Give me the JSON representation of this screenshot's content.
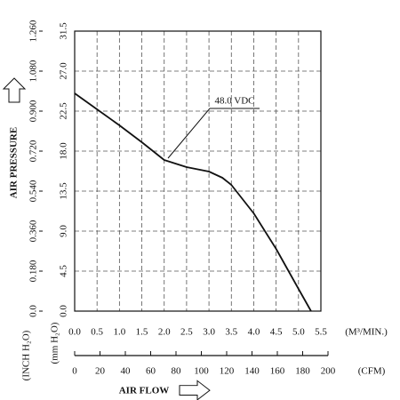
{
  "chart_data": {
    "type": "line",
    "x_label": "AIR FLOW",
    "y_label": "AIR PRESSURE",
    "x_unit": "(M³/MIN.)",
    "x2_unit": "(CFM)",
    "y_unit": "(mm H₂O)",
    "y2_unit": "(INCH H₂O)",
    "annotation": "48.0 VDC",
    "x": [
      0,
      0.5,
      1.0,
      1.5,
      2.0,
      2.5,
      3.0,
      3.3,
      3.5,
      4.0,
      4.5,
      5.0,
      5.28
    ],
    "series": [
      {
        "name": "48.0 VDC",
        "color": "#111111",
        "values": [
          24.5,
          22.7,
          20.9,
          19.0,
          17.0,
          16.2,
          15.7,
          15.0,
          14.2,
          11.0,
          7.0,
          2.5,
          0
        ]
      }
    ],
    "xlim": [
      0,
      5.5
    ],
    "xticks": [
      {
        "value": 0,
        "label": "0.0"
      },
      0.5,
      {
        "value": 1,
        "label": "1.0"
      },
      1.5,
      {
        "value": 2,
        "label": "2.0"
      },
      2.5,
      {
        "value": 3,
        "label": "3.0"
      },
      3.5,
      {
        "value": 4,
        "label": "4.0"
      },
      4.5,
      {
        "value": 5,
        "label": "5.0"
      },
      5.5
    ],
    "x2lim": [
      0,
      200
    ],
    "x2ticks": [
      0,
      20,
      40,
      60,
      80,
      100,
      120,
      140,
      160,
      180,
      200
    ],
    "ylim": [
      0,
      31.5
    ],
    "yticks": [
      {
        "value": 0,
        "label": "0.0"
      },
      4.5,
      {
        "value": 9,
        "label": "9.0"
      },
      13.5,
      {
        "value": 18,
        "label": "18.0"
      },
      22.5,
      {
        "value": 27,
        "label": "27.0"
      },
      31.5
    ],
    "y2lim": [
      0,
      1.26
    ],
    "y2ticks": [
      {
        "value": 0,
        "label": "0.0"
      },
      {
        "value": 0.18,
        "label": "0.180"
      },
      {
        "value": 0.36,
        "label": "0.360"
      },
      {
        "value": 0.54,
        "label": "0.540"
      },
      {
        "value": 0.72,
        "label": "0.720"
      },
      {
        "value": 0.9,
        "label": "0.900"
      },
      {
        "value": 1.08,
        "label": "1.080"
      },
      {
        "value": 1.26,
        "label": "1.260"
      }
    ],
    "grid": true
  }
}
